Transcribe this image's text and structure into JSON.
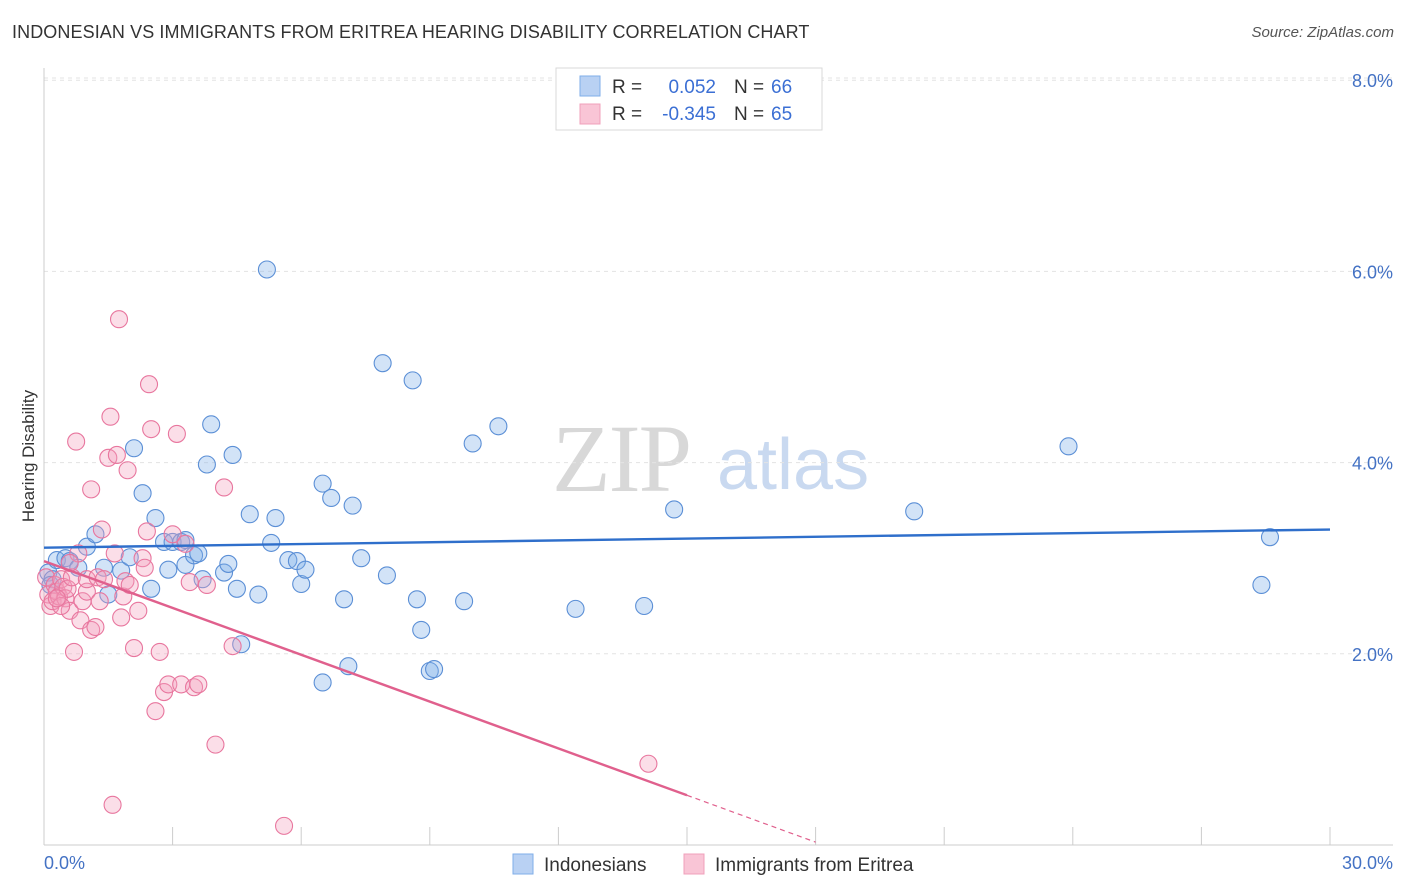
{
  "title": "INDONESIAN VS IMMIGRANTS FROM ERITREA HEARING DISABILITY CORRELATION CHART",
  "source": "Source: ZipAtlas.com",
  "watermark": {
    "zip": "ZIP",
    "atlas": "atlas"
  },
  "legend": {
    "r_label": "R =",
    "n_label": "N =",
    "series1": {
      "r": "0.052",
      "n": "66"
    },
    "series2": {
      "r": "-0.345",
      "n": "65"
    }
  },
  "chart_data": {
    "type": "scatter",
    "title": "INDONESIAN VS IMMIGRANTS FROM ERITREA HEARING DISABILITY CORRELATION CHART",
    "xlabel": "",
    "ylabel": "Hearing Disability",
    "xlim": [
      0,
      30
    ],
    "ylim": [
      0,
      8
    ],
    "x_tick_labels": [
      "0.0%",
      "30.0%"
    ],
    "y_ticks": [
      2,
      4,
      6,
      8
    ],
    "y_tick_labels": [
      "2.0%",
      "4.0%",
      "6.0%",
      "8.0%"
    ],
    "legend_position": "top-center",
    "bottom_legend": [
      "Indonesians",
      "Immigrants from Eritrea"
    ],
    "series": [
      {
        "name": "Indonesians",
        "color": "#7faee8",
        "stroke": "#5b8fd6",
        "trend_color": "#2f6fcb",
        "trend": {
          "x": [
            0,
            30
          ],
          "y": [
            3.11,
            3.3
          ]
        },
        "points": [
          [
            0.1,
            2.85
          ],
          [
            0.2,
            2.78
          ],
          [
            0.3,
            2.98
          ],
          [
            0.5,
            3.0
          ],
          [
            0.6,
            2.97
          ],
          [
            0.8,
            2.9
          ],
          [
            1.0,
            3.12
          ],
          [
            1.2,
            3.25
          ],
          [
            1.4,
            2.9
          ],
          [
            1.5,
            2.62
          ],
          [
            1.8,
            2.87
          ],
          [
            2.0,
            3.01
          ],
          [
            2.1,
            4.15
          ],
          [
            2.3,
            3.68
          ],
          [
            2.5,
            2.68
          ],
          [
            2.6,
            3.42
          ],
          [
            2.8,
            3.17
          ],
          [
            2.9,
            2.88
          ],
          [
            3.0,
            3.17
          ],
          [
            3.2,
            3.17
          ],
          [
            3.3,
            3.19
          ],
          [
            3.3,
            2.93
          ],
          [
            3.5,
            3.03
          ],
          [
            3.6,
            3.05
          ],
          [
            3.7,
            2.78
          ],
          [
            3.8,
            3.98
          ],
          [
            3.9,
            4.4
          ],
          [
            4.2,
            2.85
          ],
          [
            4.3,
            2.94
          ],
          [
            4.4,
            4.08
          ],
          [
            4.5,
            2.68
          ],
          [
            4.6,
            2.1
          ],
          [
            4.8,
            3.46
          ],
          [
            5.0,
            2.62
          ],
          [
            5.2,
            6.02
          ],
          [
            5.3,
            3.16
          ],
          [
            5.4,
            3.42
          ],
          [
            5.7,
            2.98
          ],
          [
            5.9,
            2.97
          ],
          [
            6.0,
            2.73
          ],
          [
            6.1,
            2.88
          ],
          [
            6.5,
            1.7
          ],
          [
            6.5,
            3.78
          ],
          [
            6.7,
            3.63
          ],
          [
            7.0,
            2.57
          ],
          [
            7.1,
            1.87
          ],
          [
            7.2,
            3.55
          ],
          [
            7.4,
            3.0
          ],
          [
            7.9,
            5.04
          ],
          [
            8.0,
            2.82
          ],
          [
            8.6,
            4.86
          ],
          [
            8.7,
            2.57
          ],
          [
            8.8,
            2.25
          ],
          [
            9.0,
            1.82
          ],
          [
            9.1,
            1.84
          ],
          [
            9.8,
            2.55
          ],
          [
            10.0,
            4.2
          ],
          [
            10.6,
            4.38
          ],
          [
            12.4,
            2.47
          ],
          [
            14.0,
            2.5
          ],
          [
            14.7,
            3.51
          ],
          [
            20.3,
            3.49
          ],
          [
            23.9,
            4.17
          ],
          [
            28.4,
            2.72
          ],
          [
            28.6,
            3.22
          ],
          [
            0.15,
            2.72
          ]
        ]
      },
      {
        "name": "Immigrants from Eritrea",
        "color": "#f4a0bd",
        "stroke": "#e8769e",
        "trend_color": "#e0608d",
        "trend": {
          "x": [
            0,
            15
          ],
          "y": [
            2.97,
            0.52
          ]
        },
        "trend_dashed": {
          "x": [
            15,
            18
          ],
          "y": [
            0.52,
            0.03
          ]
        },
        "points": [
          [
            0.05,
            2.8
          ],
          [
            0.1,
            2.62
          ],
          [
            0.15,
            2.5
          ],
          [
            0.2,
            2.55
          ],
          [
            0.25,
            2.72
          ],
          [
            0.3,
            2.65
          ],
          [
            0.35,
            2.6
          ],
          [
            0.4,
            2.78
          ],
          [
            0.45,
            2.7
          ],
          [
            0.5,
            2.58
          ],
          [
            0.55,
            2.68
          ],
          [
            0.6,
            2.45
          ],
          [
            0.65,
            2.8
          ],
          [
            0.7,
            2.02
          ],
          [
            0.75,
            4.22
          ],
          [
            0.8,
            3.05
          ],
          [
            0.85,
            2.35
          ],
          [
            0.9,
            2.55
          ],
          [
            1.0,
            2.65
          ],
          [
            1.0,
            2.78
          ],
          [
            1.1,
            3.72
          ],
          [
            1.1,
            2.25
          ],
          [
            1.2,
            2.28
          ],
          [
            1.25,
            2.8
          ],
          [
            1.3,
            2.55
          ],
          [
            1.35,
            3.3
          ],
          [
            1.4,
            2.78
          ],
          [
            1.5,
            4.05
          ],
          [
            1.55,
            4.48
          ],
          [
            1.6,
            0.42
          ],
          [
            1.65,
            3.05
          ],
          [
            1.7,
            4.08
          ],
          [
            1.75,
            5.5
          ],
          [
            1.8,
            2.38
          ],
          [
            1.85,
            2.6
          ],
          [
            1.9,
            2.76
          ],
          [
            1.95,
            3.92
          ],
          [
            2.0,
            2.72
          ],
          [
            2.1,
            2.06
          ],
          [
            2.2,
            2.45
          ],
          [
            2.3,
            3.0
          ],
          [
            2.35,
            2.9
          ],
          [
            2.4,
            3.28
          ],
          [
            2.45,
            4.82
          ],
          [
            2.5,
            4.35
          ],
          [
            2.6,
            1.4
          ],
          [
            2.7,
            2.02
          ],
          [
            2.8,
            1.6
          ],
          [
            2.9,
            1.68
          ],
          [
            3.0,
            3.25
          ],
          [
            3.1,
            4.3
          ],
          [
            3.2,
            1.68
          ],
          [
            3.3,
            3.15
          ],
          [
            3.4,
            2.75
          ],
          [
            3.5,
            1.65
          ],
          [
            3.6,
            1.68
          ],
          [
            3.8,
            2.72
          ],
          [
            4.0,
            1.05
          ],
          [
            4.2,
            3.74
          ],
          [
            4.4,
            2.08
          ],
          [
            5.6,
            0.2
          ],
          [
            14.1,
            0.85
          ],
          [
            0.4,
            2.5
          ],
          [
            0.6,
            2.95
          ],
          [
            0.3,
            2.58
          ]
        ]
      }
    ]
  }
}
